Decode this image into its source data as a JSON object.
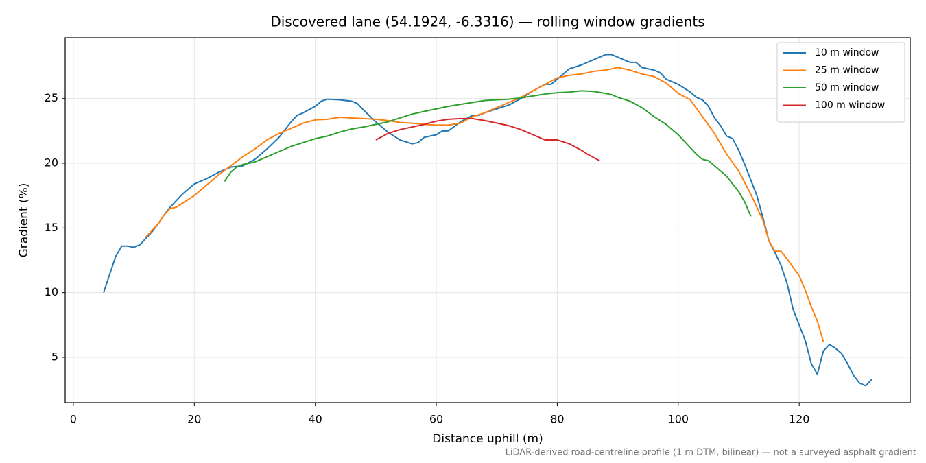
{
  "chart_data": {
    "type": "line",
    "title": "Discovered lane (54.1924, -6.3316) — rolling window gradients",
    "xlabel": "Distance uphill (m)",
    "ylabel": "Gradient (%)",
    "footnote": "LiDAR-derived road-centreline profile (1 m DTM, bilinear) — not a surveyed asphalt gradient",
    "xlim": [
      -1.35,
      138.35
    ],
    "ylim": [
      1.5,
      29.7
    ],
    "xticks": [
      0,
      20,
      40,
      60,
      80,
      100,
      120
    ],
    "yticks": [
      5,
      10,
      15,
      20,
      25
    ],
    "grid": true,
    "legend": "upper right",
    "series": [
      {
        "name": "10 m window",
        "color": "#1f77b4",
        "x": [
          5,
          6,
          7,
          8,
          9,
          10,
          11,
          12,
          13,
          14,
          15,
          16,
          17,
          18,
          19,
          20,
          22,
          24,
          26,
          28,
          30,
          32,
          34,
          36,
          37,
          38,
          40,
          41,
          42,
          44,
          46,
          47,
          48,
          50,
          52,
          54,
          56,
          57,
          58,
          60,
          61,
          62,
          64,
          66,
          67,
          68,
          70,
          72,
          74,
          76,
          78,
          79,
          80,
          82,
          84,
          86,
          88,
          89,
          90,
          91,
          92,
          93,
          94,
          96,
          97,
          98,
          100,
          102,
          103,
          104,
          105,
          106,
          107,
          108,
          109,
          110,
          111,
          112,
          113,
          114,
          115,
          116,
          117,
          118,
          119,
          120,
          121,
          122,
          123,
          124,
          125,
          126,
          127,
          128,
          129,
          130,
          131,
          132
        ],
        "values": [
          10.0,
          11.4,
          12.8,
          13.6,
          13.6,
          13.5,
          13.7,
          14.2,
          14.7,
          15.3,
          16.0,
          16.6,
          17.1,
          17.6,
          18.0,
          18.4,
          18.8,
          19.3,
          19.7,
          19.8,
          20.3,
          21.1,
          22.0,
          23.2,
          23.7,
          23.9,
          24.4,
          24.8,
          24.95,
          24.9,
          24.8,
          24.6,
          24.1,
          23.2,
          22.4,
          21.8,
          21.5,
          21.6,
          22.0,
          22.2,
          22.5,
          22.5,
          23.2,
          23.7,
          23.7,
          23.9,
          24.2,
          24.5,
          25.0,
          25.6,
          26.1,
          26.1,
          26.5,
          27.3,
          27.6,
          28.0,
          28.4,
          28.4,
          28.2,
          28.0,
          27.8,
          27.8,
          27.4,
          27.2,
          27.0,
          26.5,
          26.1,
          25.5,
          25.1,
          24.9,
          24.4,
          23.5,
          22.9,
          22.1,
          21.9,
          21.0,
          19.9,
          18.7,
          17.5,
          15.8,
          14.0,
          13.1,
          12.1,
          10.7,
          8.7,
          7.5,
          6.3,
          4.5,
          3.7,
          5.5,
          6.0,
          5.7,
          5.3,
          4.5,
          3.6,
          3.0,
          2.8,
          3.3
        ]
      },
      {
        "name": "25 m window",
        "color": "#ff7f0e",
        "x": [
          12,
          14,
          15,
          16,
          17,
          18,
          20,
          22,
          24,
          26,
          28,
          30,
          32,
          34,
          36,
          38,
          40,
          42,
          44,
          46,
          48,
          50,
          52,
          54,
          56,
          58,
          60,
          62,
          64,
          66,
          68,
          70,
          72,
          74,
          76,
          78,
          80,
          82,
          84,
          86,
          88,
          90,
          92,
          94,
          96,
          98,
          100,
          102,
          104,
          106,
          108,
          110,
          112,
          114,
          115,
          116,
          117,
          118,
          120,
          121,
          122,
          123,
          124
        ],
        "values": [
          14.3,
          15.3,
          16.0,
          16.5,
          16.6,
          16.9,
          17.5,
          18.3,
          19.1,
          19.8,
          20.5,
          21.1,
          21.8,
          22.3,
          22.7,
          23.1,
          23.35,
          23.4,
          23.55,
          23.5,
          23.45,
          23.4,
          23.3,
          23.15,
          23.1,
          23.0,
          22.95,
          22.95,
          23.1,
          23.6,
          23.9,
          24.3,
          24.7,
          25.1,
          25.6,
          26.1,
          26.6,
          26.8,
          26.9,
          27.1,
          27.2,
          27.4,
          27.2,
          26.9,
          26.7,
          26.2,
          25.4,
          24.9,
          23.6,
          22.3,
          20.7,
          19.4,
          17.6,
          15.6,
          14.0,
          13.2,
          13.2,
          12.6,
          11.3,
          10.2,
          8.9,
          7.8,
          6.2
        ]
      },
      {
        "name": "50 m window",
        "color": "#2ca02c",
        "x": [
          25,
          26,
          27,
          28,
          30,
          32,
          34,
          36,
          38,
          40,
          42,
          44,
          46,
          48,
          50,
          52,
          54,
          56,
          58,
          60,
          62,
          64,
          66,
          68,
          70,
          72,
          74,
          76,
          78,
          80,
          82,
          84,
          86,
          88,
          89,
          90,
          92,
          94,
          96,
          98,
          100,
          102,
          103,
          104,
          105,
          106,
          108,
          110,
          111,
          112
        ],
        "values": [
          18.6,
          19.3,
          19.7,
          19.9,
          20.1,
          20.5,
          20.9,
          21.3,
          21.6,
          21.9,
          22.1,
          22.4,
          22.65,
          22.8,
          23.0,
          23.2,
          23.5,
          23.8,
          24.0,
          24.2,
          24.4,
          24.55,
          24.7,
          24.85,
          24.9,
          24.95,
          25.05,
          25.2,
          25.35,
          25.45,
          25.5,
          25.6,
          25.55,
          25.4,
          25.3,
          25.1,
          24.8,
          24.3,
          23.6,
          23.0,
          22.2,
          21.2,
          20.7,
          20.3,
          20.2,
          19.8,
          19.0,
          17.8,
          17.0,
          15.9
        ]
      },
      {
        "name": "100 m window",
        "color": "#d62728",
        "x": [
          50,
          52,
          54,
          56,
          58,
          60,
          62,
          64,
          66,
          68,
          70,
          72,
          74,
          76,
          78,
          80,
          82,
          84,
          85,
          87
        ],
        "values": [
          21.8,
          22.3,
          22.6,
          22.8,
          23.0,
          23.25,
          23.4,
          23.45,
          23.45,
          23.3,
          23.1,
          22.9,
          22.6,
          22.2,
          21.8,
          21.8,
          21.5,
          21.0,
          20.7,
          20.2
        ]
      }
    ]
  }
}
